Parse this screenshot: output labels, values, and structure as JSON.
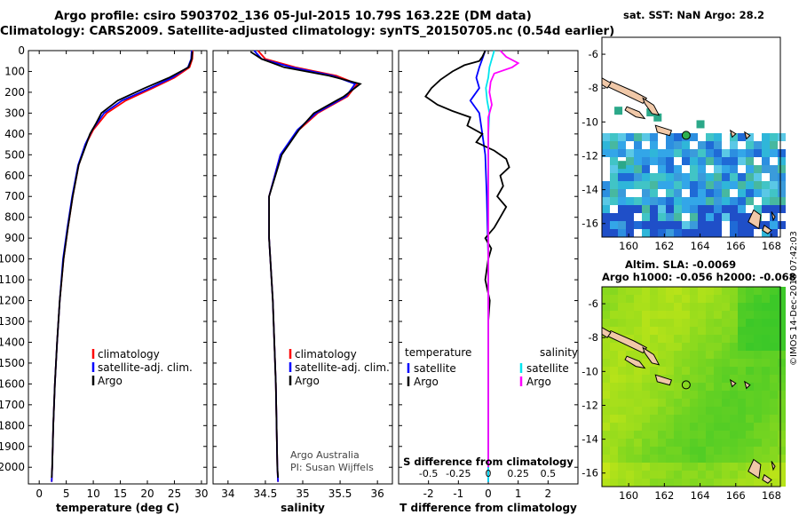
{
  "title_line1": "Argo profile: csiro 5903702_136 05-Jul-2015 10.79S 163.22E (DM data)",
  "title_line2": "Climatology: CARS2009. Satellite-adjusted climatology: synTS_20150705.nc (0.54d earlier)",
  "map1_title": "sat. SST: NaN Argo: 28.2",
  "map2_title_1": "Altim. SLA: -0.0069",
  "map2_title_2": "Argo h1000: -0.056 h2000: -0.068",
  "credit_1": "Argo Australia",
  "credit_2": "PI: Susan Wijffels",
  "footer": "©IMOS 14-Dec-2018 07:42:03",
  "map_axes": {
    "lon_ticks": [
      "160",
      "162",
      "164",
      "166",
      "168"
    ],
    "lat_ticks": [
      "-6",
      "-8",
      "-10",
      "-12",
      "-14",
      "-16"
    ]
  },
  "colors": {
    "climatology": "#ff0000",
    "satellite": "#0000ff",
    "argo": "#000000",
    "sal_satellite": "#00e5ee",
    "sal_argo": "#ff00ff"
  },
  "chart_data": [
    {
      "type": "line",
      "xlabel": "temperature (deg C)",
      "xlim": [
        -2,
        31
      ],
      "xticks": [
        "0",
        "5",
        "10",
        "15",
        "20",
        "25",
        "30"
      ],
      "ylim": [
        0,
        2080
      ],
      "yticks": [
        "0",
        "100",
        "200",
        "300",
        "400",
        "500",
        "600",
        "700",
        "800",
        "900",
        "1000",
        "1100",
        "1200",
        "1300",
        "1400",
        "1500",
        "1600",
        "1700",
        "1800",
        "1900",
        "2000"
      ],
      "legend": [
        "climatology",
        "satellite-adj. clim.",
        "Argo"
      ],
      "series": [
        {
          "name": "climatology",
          "points": [
            [
              28.4,
              0
            ],
            [
              28.3,
              40
            ],
            [
              27.8,
              80
            ],
            [
              25,
              130
            ],
            [
              21,
              180
            ],
            [
              16,
              240
            ],
            [
              12.5,
              300
            ],
            [
              10,
              380
            ],
            [
              8.6,
              450
            ],
            [
              7.3,
              550
            ],
            [
              6.2,
              700
            ],
            [
              5.3,
              850
            ],
            [
              4.5,
              1000
            ],
            [
              3.8,
              1200
            ],
            [
              3.3,
              1400
            ],
            [
              2.9,
              1600
            ],
            [
              2.6,
              1800
            ],
            [
              2.4,
              2000
            ],
            [
              2.3,
              2070
            ]
          ]
        },
        {
          "name": "satellite-adj. clim.",
          "points": [
            [
              28.2,
              0
            ],
            [
              28.1,
              40
            ],
            [
              27.5,
              80
            ],
            [
              24.6,
              130
            ],
            [
              20.5,
              180
            ],
            [
              15.3,
              240
            ],
            [
              12,
              300
            ],
            [
              9.8,
              380
            ],
            [
              8.5,
              450
            ],
            [
              7.2,
              550
            ],
            [
              6.1,
              700
            ],
            [
              5.2,
              850
            ],
            [
              4.4,
              1000
            ],
            [
              3.8,
              1200
            ],
            [
              3.3,
              1400
            ],
            [
              2.9,
              1600
            ],
            [
              2.6,
              1800
            ],
            [
              2.4,
              2000
            ],
            [
              2.3,
              2070
            ]
          ]
        },
        {
          "name": "Argo",
          "points": [
            [
              28.3,
              5
            ],
            [
              28.2,
              40
            ],
            [
              27.6,
              80
            ],
            [
              24,
              130
            ],
            [
              19.5,
              180
            ],
            [
              14.5,
              240
            ],
            [
              11.5,
              300
            ],
            [
              10.5,
              350
            ],
            [
              9.4,
              400
            ],
            [
              8.7,
              450
            ],
            [
              7.3,
              550
            ],
            [
              6.2,
              700
            ],
            [
              5.3,
              850
            ],
            [
              4.5,
              1000
            ],
            [
              3.8,
              1200
            ],
            [
              3.3,
              1400
            ],
            [
              2.9,
              1600
            ],
            [
              2.6,
              1800
            ],
            [
              2.4,
              2000
            ],
            [
              2.3,
              2050
            ]
          ]
        }
      ]
    },
    {
      "type": "line",
      "xlabel": "salinity",
      "xlim": [
        33.8,
        36.2
      ],
      "xticks": [
        "34",
        "34.5",
        "35",
        "35.5",
        "36"
      ],
      "ylim": [
        0,
        2080
      ],
      "legend": [
        "climatology",
        "satellite-adj. clim.",
        "Argo"
      ],
      "series": [
        {
          "name": "climatology",
          "points": [
            [
              34.4,
              0
            ],
            [
              34.5,
              40
            ],
            [
              34.9,
              80
            ],
            [
              35.45,
              120
            ],
            [
              35.73,
              160
            ],
            [
              35.6,
              220
            ],
            [
              35.2,
              300
            ],
            [
              34.95,
              380
            ],
            [
              34.7,
              500
            ],
            [
              34.55,
              700
            ],
            [
              34.55,
              900
            ],
            [
              34.6,
              1200
            ],
            [
              34.64,
              1600
            ],
            [
              34.66,
              2000
            ],
            [
              34.67,
              2070
            ]
          ]
        },
        {
          "name": "satellite-adj. clim.",
          "points": [
            [
              34.35,
              0
            ],
            [
              34.45,
              40
            ],
            [
              34.85,
              80
            ],
            [
              35.4,
              120
            ],
            [
              35.7,
              160
            ],
            [
              35.58,
              220
            ],
            [
              35.18,
              300
            ],
            [
              34.93,
              380
            ],
            [
              34.7,
              500
            ],
            [
              34.55,
              700
            ],
            [
              34.55,
              900
            ],
            [
              34.6,
              1200
            ],
            [
              34.64,
              1600
            ],
            [
              34.66,
              2000
            ],
            [
              34.67,
              2070
            ]
          ]
        },
        {
          "name": "Argo",
          "points": [
            [
              34.3,
              5
            ],
            [
              34.45,
              40
            ],
            [
              34.75,
              80
            ],
            [
              35.35,
              120
            ],
            [
              35.77,
              160
            ],
            [
              35.55,
              220
            ],
            [
              35.15,
              300
            ],
            [
              34.95,
              380
            ],
            [
              34.72,
              500
            ],
            [
              34.55,
              700
            ],
            [
              34.55,
              900
            ],
            [
              34.6,
              1200
            ],
            [
              34.64,
              1600
            ],
            [
              34.66,
              2000
            ],
            [
              34.67,
              2050
            ]
          ]
        }
      ]
    },
    {
      "type": "line",
      "xlabel": "T difference from climatology",
      "xlabel_top": "S difference from climatology",
      "xlim": [
        -3,
        3
      ],
      "xticks": [
        "-2",
        "-1",
        "0",
        "1",
        "2"
      ],
      "xticks_top": [
        "-0.5",
        "-0.25",
        "0",
        "0.25",
        "0.5"
      ],
      "ylim": [
        0,
        2080
      ],
      "legend_left_title": "temperature",
      "legend_right_title": "salinity",
      "legend_left": [
        "satellite",
        "Argo"
      ],
      "legend_right": [
        "satellite",
        "Argo"
      ],
      "series": [
        {
          "name": "temperature satellite",
          "points": [
            [
              -0.1,
              0
            ],
            [
              -0.2,
              40
            ],
            [
              -0.3,
              80
            ],
            [
              -0.4,
              130
            ],
            [
              -0.3,
              180
            ],
            [
              -0.6,
              240
            ],
            [
              -0.3,
              300
            ],
            [
              -0.2,
              400
            ],
            [
              -0.1,
              500
            ],
            [
              -0.05,
              700
            ],
            [
              0,
              1000
            ],
            [
              0,
              1500
            ],
            [
              0,
              2000
            ],
            [
              0,
              2070
            ]
          ]
        },
        {
          "name": "temperature Argo",
          "points": [
            [
              -0.1,
              0
            ],
            [
              -0.2,
              30
            ],
            [
              -0.3,
              50
            ],
            [
              -0.8,
              70
            ],
            [
              -1.2,
              100
            ],
            [
              -1.6,
              140
            ],
            [
              -1.9,
              180
            ],
            [
              -2.1,
              220
            ],
            [
              -1.7,
              260
            ],
            [
              -1.2,
              290
            ],
            [
              -0.6,
              320
            ],
            [
              -0.7,
              360
            ],
            [
              -0.2,
              400
            ],
            [
              -0.4,
              440
            ],
            [
              0.2,
              480
            ],
            [
              0.6,
              520
            ],
            [
              0.7,
              560
            ],
            [
              0.4,
              600
            ],
            [
              0.5,
              650
            ],
            [
              0.3,
              700
            ],
            [
              0.6,
              750
            ],
            [
              0.4,
              800
            ],
            [
              0.2,
              850
            ],
            [
              -0.1,
              900
            ],
            [
              0.1,
              950
            ],
            [
              0,
              1000
            ],
            [
              -0.1,
              1100
            ],
            [
              0.05,
              1200
            ],
            [
              0,
              1300
            ],
            [
              0,
              1500
            ],
            [
              0,
              2000
            ]
          ]
        },
        {
          "name": "salinity satellite",
          "points": [
            [
              0.05,
              0
            ],
            [
              0.03,
              40
            ],
            [
              0.01,
              80
            ],
            [
              0,
              130
            ],
            [
              -0.02,
              180
            ],
            [
              -0.01,
              240
            ],
            [
              0.01,
              300
            ],
            [
              0,
              400
            ],
            [
              0,
              600
            ],
            [
              0,
              1000
            ],
            [
              0,
              2000
            ],
            [
              0,
              2070
            ]
          ]
        },
        {
          "name": "salinity Argo",
          "points": [
            [
              0.1,
              0
            ],
            [
              0.15,
              30
            ],
            [
              0.25,
              60
            ],
            [
              0.2,
              80
            ],
            [
              0.05,
              110
            ],
            [
              0.02,
              150
            ],
            [
              0.01,
              200
            ],
            [
              0.03,
              260
            ],
            [
              0,
              320
            ],
            [
              0,
              600
            ],
            [
              0,
              1000
            ],
            [
              0,
              1500
            ],
            [
              0,
              2000
            ]
          ]
        }
      ]
    }
  ]
}
